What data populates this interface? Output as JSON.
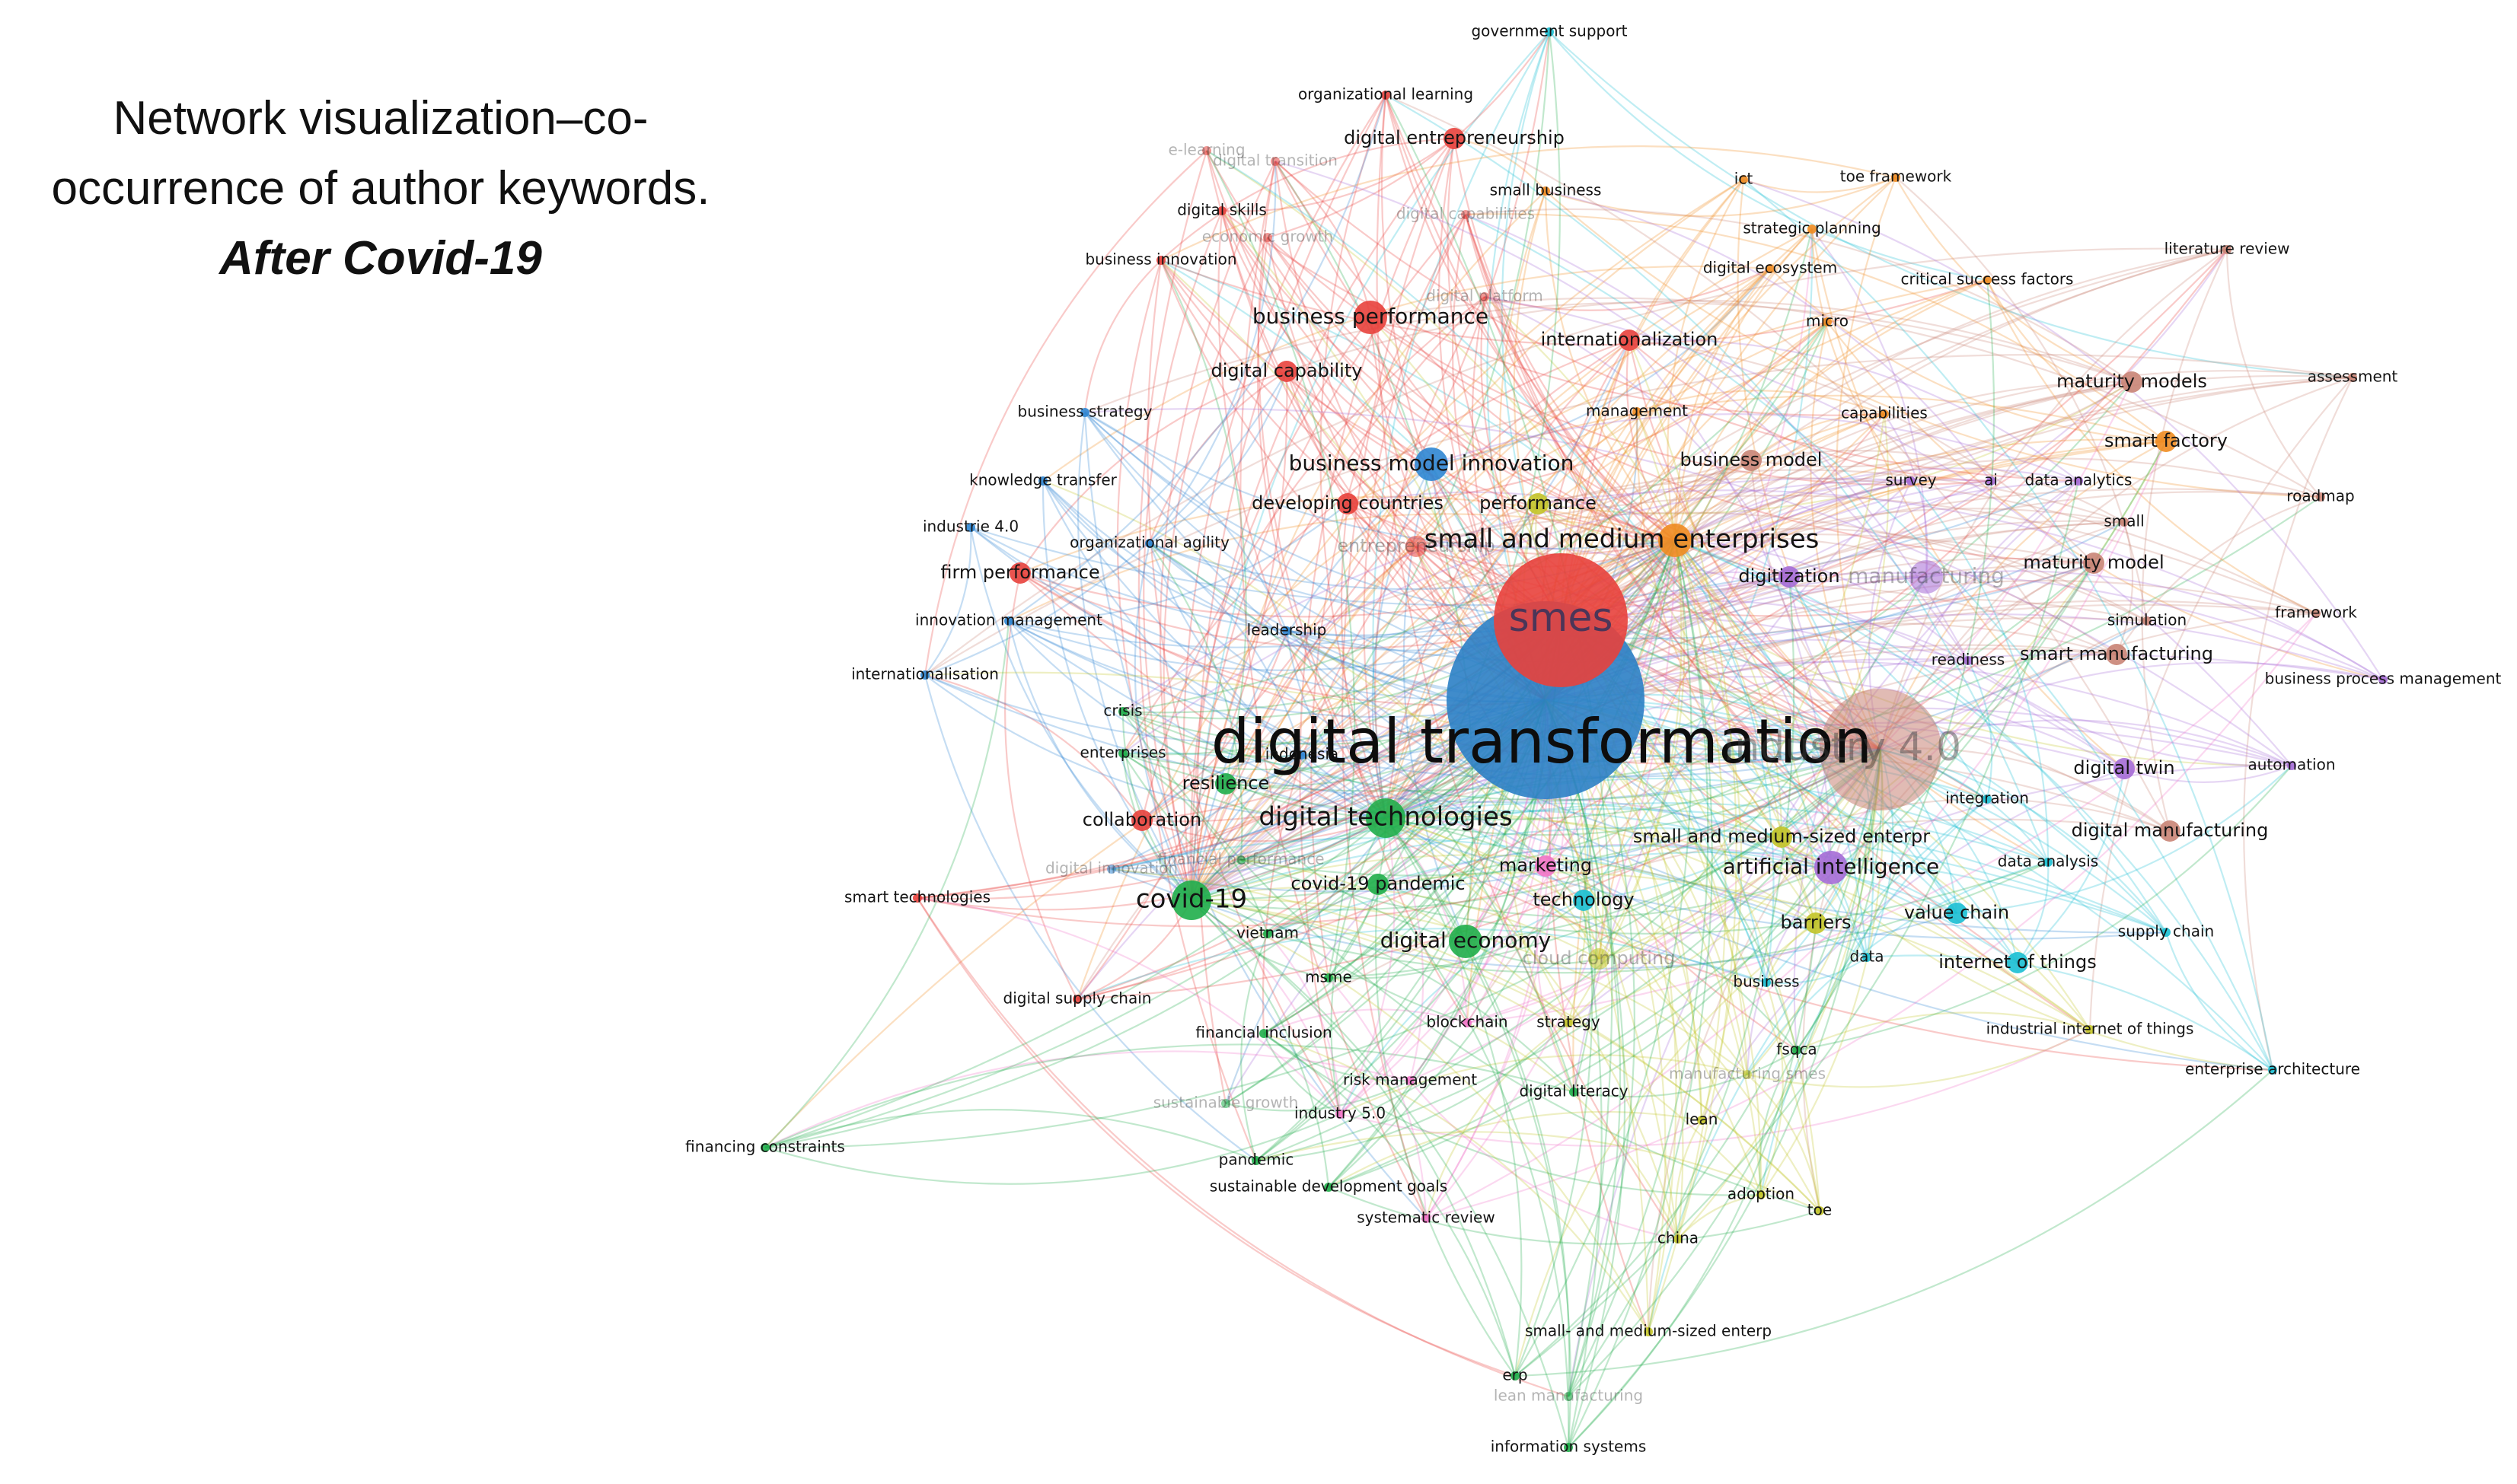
{
  "title": {
    "line1": "Network visualization–co-",
    "line2": "occurrence of author keywords.",
    "line3": "After Covid-19"
  },
  "palette": {
    "red": "#e8413c",
    "blue": "#2f86d3",
    "green": "#1fae4a",
    "orange": "#f08c21",
    "purple": "#a56bd6",
    "brown": "#c98476",
    "pink": "#f274c8",
    "cyan": "#19bfd3",
    "olive": "#c3c428",
    "focus": "#2b7fc5"
  },
  "nodes": [
    {
      "label": "digital transformation",
      "c": "focus",
      "size": "huge",
      "fade": false
    },
    {
      "label": "smes",
      "c": "red",
      "size": "xl",
      "fade": false
    },
    {
      "label": "industry 4.0",
      "c": "brown",
      "size": "xl",
      "fade": true
    },
    {
      "label": "small and medium enterprises",
      "c": "orange",
      "size": "lg",
      "fade": false
    },
    {
      "label": "covid-19",
      "c": "green",
      "size": "lg",
      "fade": false
    },
    {
      "label": "digital technologies",
      "c": "green",
      "size": "lg",
      "fade": false
    },
    {
      "label": "business model innovation",
      "c": "blue",
      "size": "md",
      "fade": false
    },
    {
      "label": "manufacturing",
      "c": "purple",
      "size": "md",
      "fade": true
    },
    {
      "label": "artificial intelligence",
      "c": "purple",
      "size": "md",
      "fade": false
    },
    {
      "label": "digital economy",
      "c": "green",
      "size": "md",
      "fade": false
    },
    {
      "label": "business performance",
      "c": "red",
      "size": "md",
      "fade": false
    },
    {
      "label": "developing countries",
      "c": "red",
      "size": "sm",
      "fade": false
    },
    {
      "label": "performance",
      "c": "olive",
      "size": "sm",
      "fade": false
    },
    {
      "label": "entrepreneurship",
      "c": "red",
      "size": "sm",
      "fade": true
    },
    {
      "label": "business model",
      "c": "brown",
      "size": "sm",
      "fade": false
    },
    {
      "label": "digitization",
      "c": "purple",
      "size": "sm",
      "fade": false
    },
    {
      "label": "maturity model",
      "c": "brown",
      "size": "sm",
      "fade": false
    },
    {
      "label": "smart manufacturing",
      "c": "brown",
      "size": "sm",
      "fade": false
    },
    {
      "label": "digital twin",
      "c": "purple",
      "size": "sm",
      "fade": false
    },
    {
      "label": "small and medium-sized enterpr",
      "c": "olive",
      "size": "sm",
      "fade": false
    },
    {
      "label": "covid-19 pandemic",
      "c": "green",
      "size": "sm",
      "fade": false
    },
    {
      "label": "technology",
      "c": "cyan",
      "size": "sm",
      "fade": false
    },
    {
      "label": "internet of things",
      "c": "cyan",
      "size": "sm",
      "fade": false
    },
    {
      "label": "value chain",
      "c": "cyan",
      "size": "sm",
      "fade": false
    },
    {
      "label": "digital manufacturing",
      "c": "brown",
      "size": "sm",
      "fade": false
    },
    {
      "label": "maturity models",
      "c": "brown",
      "size": "sm",
      "fade": false
    },
    {
      "label": "smart factory",
      "c": "orange",
      "size": "sm",
      "fade": false
    },
    {
      "label": "digital capability",
      "c": "red",
      "size": "sm",
      "fade": false
    },
    {
      "label": "digital entrepreneurship",
      "c": "red",
      "size": "sm",
      "fade": false
    },
    {
      "label": "internationalization",
      "c": "red",
      "size": "sm",
      "fade": false
    },
    {
      "label": "firm performance",
      "c": "red",
      "size": "sm",
      "fade": false
    },
    {
      "label": "collaboration",
      "c": "red",
      "size": "sm",
      "fade": false
    },
    {
      "label": "resilience",
      "c": "green",
      "size": "sm",
      "fade": false
    },
    {
      "label": "marketing",
      "c": "pink",
      "size": "sm",
      "fade": false
    },
    {
      "label": "barriers",
      "c": "olive",
      "size": "sm",
      "fade": false
    },
    {
      "label": "cloud computing",
      "c": "olive",
      "size": "sm",
      "fade": true
    },
    {
      "label": "government support",
      "c": "cyan",
      "size": "xs",
      "fade": false
    },
    {
      "label": "organizational learning",
      "c": "red",
      "size": "xs",
      "fade": false
    },
    {
      "label": "e-learning",
      "c": "red",
      "size": "xs",
      "fade": true
    },
    {
      "label": "digital transition",
      "c": "red",
      "size": "xs",
      "fade": true
    },
    {
      "label": "digital skills",
      "c": "red",
      "size": "xs",
      "fade": false
    },
    {
      "label": "economic growth",
      "c": "red",
      "size": "xs",
      "fade": true
    },
    {
      "label": "business innovation",
      "c": "red",
      "size": "xs",
      "fade": false
    },
    {
      "label": "small business",
      "c": "orange",
      "size": "xs",
      "fade": false
    },
    {
      "label": "digital capabilities",
      "c": "red",
      "size": "xs",
      "fade": true
    },
    {
      "label": "digital platform",
      "c": "red",
      "size": "xs",
      "fade": true
    },
    {
      "label": "ict",
      "c": "orange",
      "size": "xs",
      "fade": false
    },
    {
      "label": "toe framework",
      "c": "orange",
      "size": "xs",
      "fade": false
    },
    {
      "label": "strategic planning",
      "c": "orange",
      "size": "xs",
      "fade": false
    },
    {
      "label": "digital ecosystem",
      "c": "orange",
      "size": "xs",
      "fade": false
    },
    {
      "label": "critical success factors",
      "c": "orange",
      "size": "xs",
      "fade": false
    },
    {
      "label": "micro",
      "c": "orange",
      "size": "xs",
      "fade": false
    },
    {
      "label": "literature review",
      "c": "brown",
      "size": "xs",
      "fade": false
    },
    {
      "label": "assessment",
      "c": "brown",
      "size": "xs",
      "fade": false
    },
    {
      "label": "capabilities",
      "c": "orange",
      "size": "xs",
      "fade": false
    },
    {
      "label": "management",
      "c": "orange",
      "size": "xs",
      "fade": false
    },
    {
      "label": "business strategy",
      "c": "blue",
      "size": "xs",
      "fade": false
    },
    {
      "label": "knowledge transfer",
      "c": "blue",
      "size": "xs",
      "fade": false
    },
    {
      "label": "industrie 4.0",
      "c": "blue",
      "size": "xs",
      "fade": false
    },
    {
      "label": "organizational agility",
      "c": "blue",
      "size": "xs",
      "fade": false
    },
    {
      "label": "innovation management",
      "c": "blue",
      "size": "xs",
      "fade": false
    },
    {
      "label": "leadership",
      "c": "blue",
      "size": "xs",
      "fade": false
    },
    {
      "label": "internationalisation",
      "c": "blue",
      "size": "xs",
      "fade": false
    },
    {
      "label": "survey",
      "c": "purple",
      "size": "xs",
      "fade": false
    },
    {
      "label": "ai",
      "c": "purple",
      "size": "xs",
      "fade": false
    },
    {
      "label": "data analytics",
      "c": "purple",
      "size": "xs",
      "fade": false
    },
    {
      "label": "small",
      "c": "brown",
      "size": "xs",
      "fade": false
    },
    {
      "label": "roadmap",
      "c": "brown",
      "size": "xs",
      "fade": false
    },
    {
      "label": "simulation",
      "c": "brown",
      "size": "xs",
      "fade": false
    },
    {
      "label": "framework",
      "c": "brown",
      "size": "xs",
      "fade": false
    },
    {
      "label": "readiness",
      "c": "purple",
      "size": "xs",
      "fade": false
    },
    {
      "label": "business process management",
      "c": "purple",
      "size": "xs",
      "fade": false
    },
    {
      "label": "automation",
      "c": "purple",
      "size": "xs",
      "fade": false
    },
    {
      "label": "integration",
      "c": "cyan",
      "size": "xs",
      "fade": false
    },
    {
      "label": "data analysis",
      "c": "cyan",
      "size": "xs",
      "fade": false
    },
    {
      "label": "supply chain",
      "c": "cyan",
      "size": "xs",
      "fade": false
    },
    {
      "label": "industrial internet of things",
      "c": "olive",
      "size": "xs",
      "fade": false
    },
    {
      "label": "enterprise architecture",
      "c": "cyan",
      "size": "xs",
      "fade": false
    },
    {
      "label": "crisis",
      "c": "green",
      "size": "xs",
      "fade": false
    },
    {
      "label": "enterprises",
      "c": "green",
      "size": "xs",
      "fade": false
    },
    {
      "label": "indonesia",
      "c": "blue",
      "size": "xs",
      "fade": false
    },
    {
      "label": "financial performance",
      "c": "green",
      "size": "xs",
      "fade": true
    },
    {
      "label": "digital innovation",
      "c": "blue",
      "size": "xs",
      "fade": true
    },
    {
      "label": "smart technologies",
      "c": "red",
      "size": "xs",
      "fade": false
    },
    {
      "label": "vietnam",
      "c": "green",
      "size": "xs",
      "fade": false
    },
    {
      "label": "msme",
      "c": "green",
      "size": "xs",
      "fade": false
    },
    {
      "label": "digital supply chain",
      "c": "red",
      "size": "xs",
      "fade": false
    },
    {
      "label": "blockchain",
      "c": "pink",
      "size": "xs",
      "fade": false
    },
    {
      "label": "strategy",
      "c": "olive",
      "size": "xs",
      "fade": false
    },
    {
      "label": "business",
      "c": "cyan",
      "size": "xs",
      "fade": false
    },
    {
      "label": "data",
      "c": "cyan",
      "size": "xs",
      "fade": false
    },
    {
      "label": "financial inclusion",
      "c": "green",
      "size": "xs",
      "fade": false
    },
    {
      "label": "fsqca",
      "c": "green",
      "size": "xs",
      "fade": false
    },
    {
      "label": "risk management",
      "c": "pink",
      "size": "xs",
      "fade": false
    },
    {
      "label": "manufacturing smes",
      "c": "olive",
      "size": "xs",
      "fade": true
    },
    {
      "label": "digital literacy",
      "c": "green",
      "size": "xs",
      "fade": false
    },
    {
      "label": "sustainable growth",
      "c": "green",
      "size": "xs",
      "fade": true
    },
    {
      "label": "industry 5.0",
      "c": "pink",
      "size": "xs",
      "fade": false
    },
    {
      "label": "lean",
      "c": "olive",
      "size": "xs",
      "fade": false
    },
    {
      "label": "financing constraints",
      "c": "green",
      "size": "xs",
      "fade": false
    },
    {
      "label": "pandemic",
      "c": "green",
      "size": "xs",
      "fade": false
    },
    {
      "label": "sustainable development goals",
      "c": "green",
      "size": "xs",
      "fade": false
    },
    {
      "label": "adoption",
      "c": "olive",
      "size": "xs",
      "fade": false
    },
    {
      "label": "toe",
      "c": "olive",
      "size": "xs",
      "fade": false
    },
    {
      "label": "systematic review",
      "c": "pink",
      "size": "xs",
      "fade": false
    },
    {
      "label": "china",
      "c": "olive",
      "size": "xs",
      "fade": false
    },
    {
      "label": "small- and medium-sized enterp",
      "c": "olive",
      "size": "xs",
      "fade": false
    },
    {
      "label": "erp",
      "c": "green",
      "size": "xs",
      "fade": false
    },
    {
      "label": "lean manufacturing",
      "c": "green",
      "size": "xs",
      "fade": true
    },
    {
      "label": "information systems",
      "c": "green",
      "size": "xs",
      "fade": false
    }
  ]
}
